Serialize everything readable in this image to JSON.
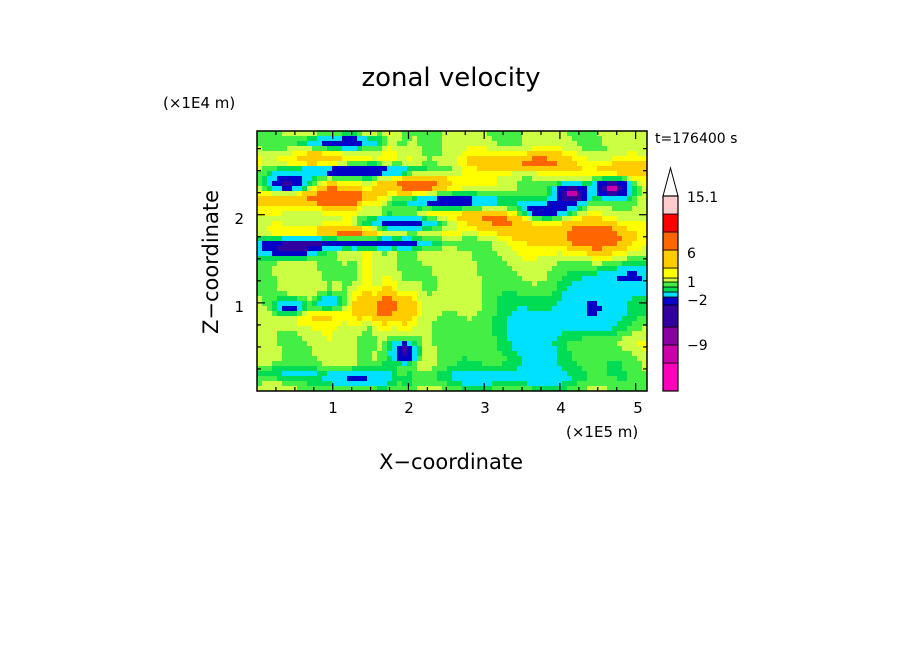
{
  "chart_data": {
    "type": "heatmap",
    "title": "zonal velocity",
    "xlabel": "X−coordinate",
    "ylabel": "Z−coordinate",
    "x_unit": "(×1E5 m)",
    "y_unit": "(×1E4 m)",
    "time_label": "t=176400 s",
    "xlim": [
      0,
      5.15
    ],
    "ylim": [
      0,
      2.95
    ],
    "x_ticks": [
      "1",
      "2",
      "3",
      "4",
      "5"
    ],
    "y_ticks": [
      "1",
      "2"
    ],
    "colorbar": {
      "levels": [
        -15,
        -12,
        -9,
        -6,
        -3,
        -2,
        -1,
        0,
        1,
        2,
        3,
        6,
        9,
        12,
        15.1
      ],
      "colors": [
        "#ff00bb",
        "#cc00aa",
        "#8800a0",
        "#3300a0",
        "#0000c8",
        "#00e0ff",
        "#00dd55",
        "#44ee44",
        "#ccff44",
        "#ffff00",
        "#ffcc00",
        "#ff6600",
        "#ff0000",
        "#ff8888",
        "#ffcccc"
      ],
      "tick_labels": [
        "15.1",
        "6",
        "1",
        "−2",
        "−9"
      ]
    }
  }
}
